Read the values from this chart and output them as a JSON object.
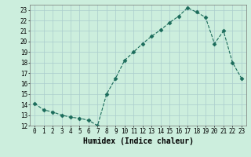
{
  "x": [
    0,
    1,
    2,
    3,
    4,
    5,
    6,
    7,
    8,
    9,
    10,
    11,
    12,
    13,
    14,
    15,
    16,
    17,
    18,
    19,
    20,
    21,
    22,
    23
  ],
  "y": [
    14.1,
    13.5,
    13.3,
    13.0,
    12.8,
    12.7,
    12.5,
    12.0,
    15.0,
    16.5,
    18.2,
    19.0,
    19.8,
    20.5,
    21.1,
    21.8,
    22.4,
    23.2,
    22.8,
    22.3,
    19.8,
    21.0,
    18.0,
    16.5
  ],
  "xlabel": "Humidex (Indice chaleur)",
  "xlim": [
    -0.5,
    23.5
  ],
  "ylim": [
    12,
    23.5
  ],
  "yticks": [
    12,
    13,
    14,
    15,
    16,
    17,
    18,
    19,
    20,
    21,
    22,
    23
  ],
  "xticks": [
    0,
    1,
    2,
    3,
    4,
    5,
    6,
    7,
    8,
    9,
    10,
    11,
    12,
    13,
    14,
    15,
    16,
    17,
    18,
    19,
    20,
    21,
    22,
    23
  ],
  "line_color": "#1a6b5a",
  "marker": "D",
  "marker_size": 2.5,
  "bg_color": "#cceedd",
  "grid_color": "#aacccc",
  "xlabel_fontsize": 7,
  "tick_fontsize": 5.5
}
